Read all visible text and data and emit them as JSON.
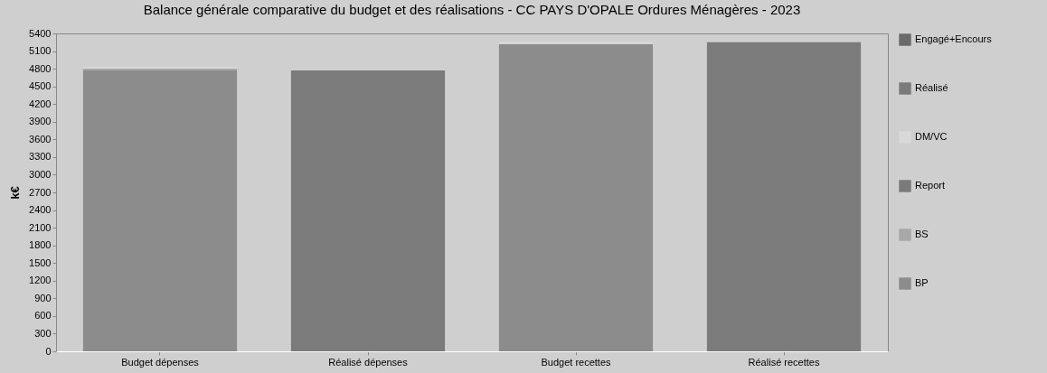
{
  "chart_data": {
    "type": "bar",
    "title": "Balance générale comparative du budget et des réalisations - CC PAYS D'OPALE Ordures Ménagères - 2023",
    "ylabel": "k€",
    "categories": [
      "Budget dépenses",
      "Réalisé dépenses",
      "Budget recettes",
      "Réalisé recettes"
    ],
    "stacked": true,
    "ylim": [
      0,
      5400
    ],
    "yticks": [
      0,
      300,
      600,
      900,
      1200,
      1500,
      1800,
      2100,
      2400,
      2700,
      3000,
      3300,
      3600,
      3900,
      4200,
      4500,
      4800,
      5100,
      5400
    ],
    "grid": false,
    "legend": "right",
    "series": [
      {
        "name": "BP",
        "color": "#8c8c8c",
        "values": [
          4770,
          null,
          5220,
          null
        ]
      },
      {
        "name": "BS",
        "color": "#a8a8a8",
        "values": [
          30,
          null,
          null,
          null
        ]
      },
      {
        "name": "Report",
        "color": "#7a7a7a",
        "values": [
          null,
          null,
          null,
          null
        ]
      },
      {
        "name": "DM/VC",
        "color": "#d9d9d9",
        "values": [
          30,
          null,
          40,
          null
        ]
      },
      {
        "name": "Réalisé",
        "color": "#7b7b7b",
        "values": [
          null,
          4770,
          null,
          5250
        ]
      },
      {
        "name": "Engagé+Encours",
        "color": "#6a6a6a",
        "values": [
          null,
          null,
          null,
          null
        ]
      }
    ]
  }
}
